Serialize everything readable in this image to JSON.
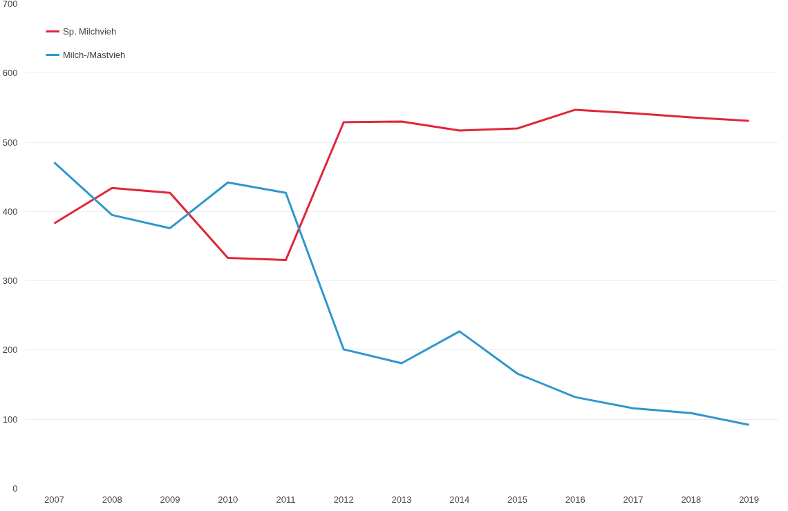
{
  "chart_data": {
    "type": "line",
    "categories": [
      "2007",
      "2008",
      "2009",
      "2010",
      "2011",
      "2012",
      "2013",
      "2014",
      "2015",
      "2016",
      "2017",
      "2018",
      "2019"
    ],
    "series": [
      {
        "name": "Sp. Milchvieh",
        "color": "#e0263a",
        "values": [
          383,
          434,
          427,
          333,
          330,
          529,
          530,
          517,
          520,
          547,
          542,
          536,
          531
        ]
      },
      {
        "name": "Milch-/Mastvieh",
        "color": "#2f96cf",
        "values": [
          471,
          395,
          376,
          442,
          427,
          201,
          181,
          227,
          166,
          132,
          116,
          109,
          92
        ]
      }
    ],
    "ylim": [
      0,
      700
    ],
    "yticks": [
      0,
      100,
      200,
      300,
      400,
      500,
      600,
      700
    ],
    "grid": "y",
    "legend": "top left",
    "line_style": "solid",
    "marker": "none"
  }
}
